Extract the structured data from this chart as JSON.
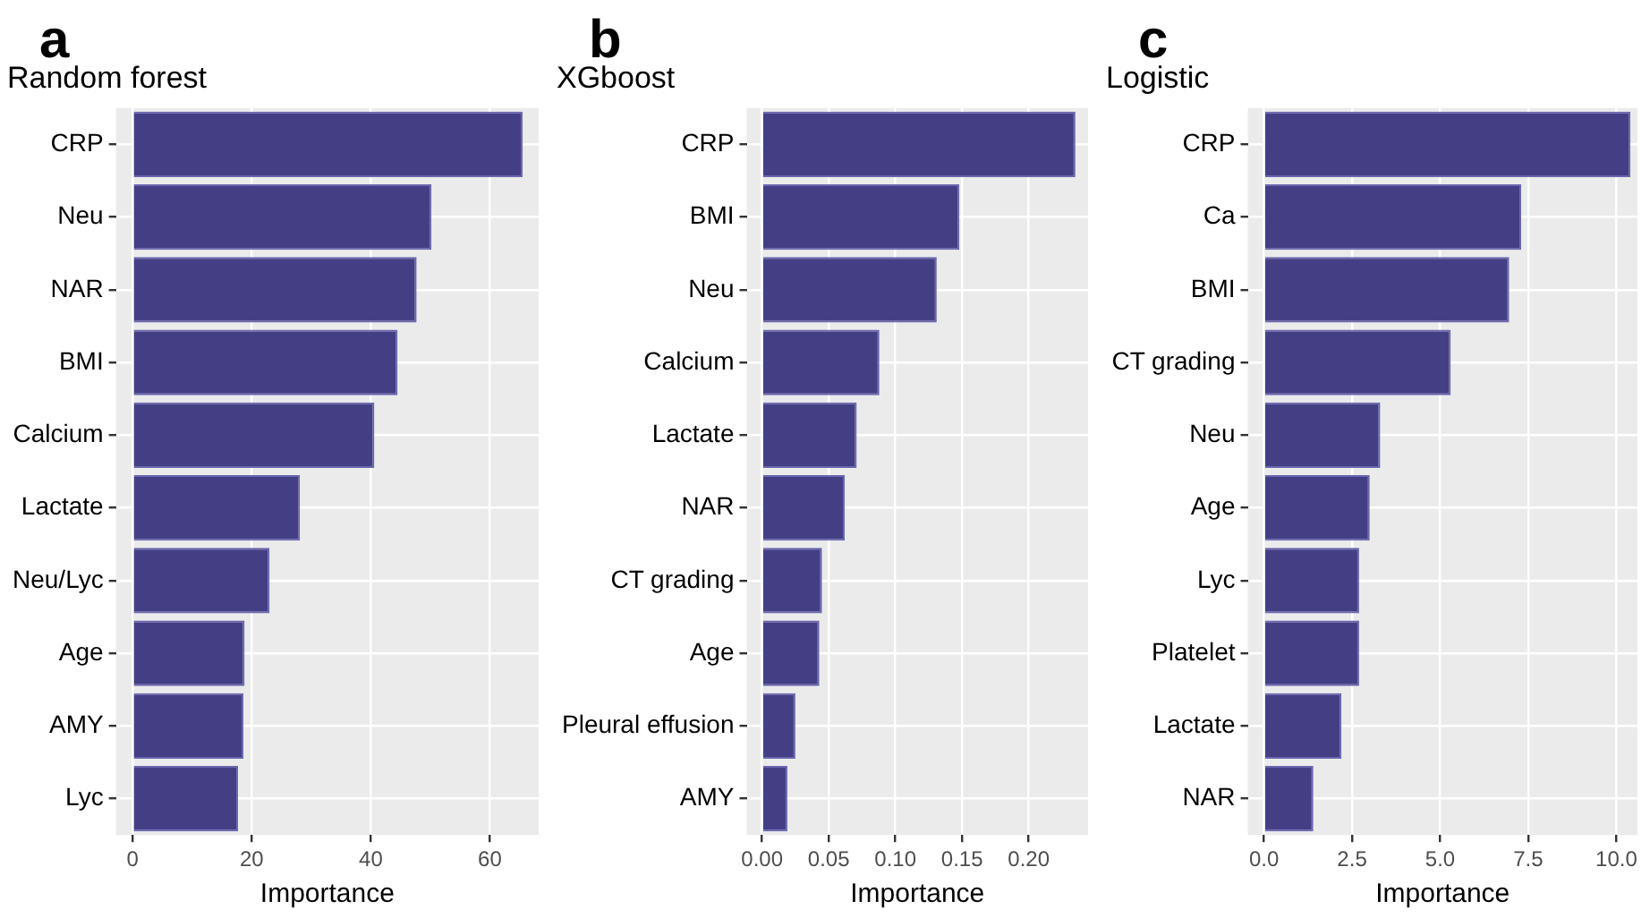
{
  "chart_data": [
    {
      "type": "bar",
      "orientation": "horizontal",
      "title": "Random forest",
      "xlabel": "Importance",
      "annotations": [
        "a"
      ],
      "grid": true,
      "color": "#443f85",
      "categories": [
        "CRP",
        "Neu",
        "NAR",
        "BMI",
        "Calcium",
        "Lactate",
        "Neu/Lyc",
        "Age",
        "AMY",
        "Lyc"
      ],
      "values": [
        65.5,
        50.2,
        47.7,
        44.5,
        40.6,
        28.1,
        23.0,
        18.8,
        18.6,
        17.7
      ],
      "xlim": [
        -2.8,
        68.2
      ],
      "xticks": [
        0,
        20,
        40,
        60
      ]
    },
    {
      "type": "bar",
      "orientation": "horizontal",
      "title": "XGboost",
      "xlabel": "Importance",
      "annotations": [
        "b"
      ],
      "grid": true,
      "color": "#443f85",
      "categories": [
        "CRP",
        "BMI",
        "Neu",
        "Calcium",
        "Lactate",
        "NAR",
        "CT grading",
        "Age",
        "Pleural effusion",
        "AMY"
      ],
      "values": [
        0.235,
        0.148,
        0.131,
        0.088,
        0.071,
        0.062,
        0.045,
        0.043,
        0.025,
        0.019
      ],
      "xlim": [
        -0.0115,
        0.2445
      ],
      "xticks": [
        {
          "value": 0,
          "label": "0.00"
        },
        0.05,
        {
          "value": 0.1,
          "label": "0.10"
        },
        0.15,
        {
          "value": 0.2,
          "label": "0.20"
        }
      ]
    },
    {
      "type": "bar",
      "orientation": "horizontal",
      "title": "Logistic",
      "xlabel": "Importance",
      "annotations": [
        "c"
      ],
      "grid": true,
      "color": "#443f85",
      "categories": [
        "CRP",
        "Ca",
        "BMI",
        "CT grading",
        "Neu",
        "Age",
        "Lyc",
        "Platelet",
        "Lactate",
        "NAR"
      ],
      "values": [
        10.4,
        7.3,
        6.96,
        5.3,
        3.3,
        3.0,
        2.7,
        2.7,
        2.2,
        1.4
      ],
      "xlim": [
        -0.46,
        10.6
      ],
      "xticks": [
        {
          "value": 0,
          "label": "0.0"
        },
        2.5,
        {
          "value": 5,
          "label": "5.0"
        },
        7.5,
        {
          "value": 10,
          "label": "10.0"
        }
      ]
    }
  ]
}
